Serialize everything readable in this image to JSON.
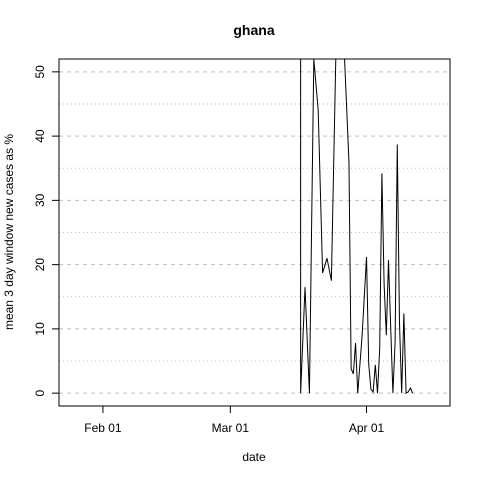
{
  "chart_data": {
    "type": "line",
    "title": "ghana",
    "xlabel": "date",
    "ylabel": "mean  3  day window new cases as %",
    "xlim": [
      "2020-01-22",
      "2020-04-20"
    ],
    "ylim": [
      -2,
      52
    ],
    "x_ticks": [
      {
        "date": "2020-02-01",
        "label": "Feb 01"
      },
      {
        "date": "2020-03-01",
        "label": "Mar 01"
      },
      {
        "date": "2020-04-01",
        "label": "Apr 01"
      }
    ],
    "y_ticks": [
      0,
      10,
      20,
      30,
      40,
      50
    ],
    "grid": {
      "horizontal_major": [
        0,
        10,
        20,
        30,
        40,
        50
      ],
      "horizontal_minor": [
        5,
        15,
        25,
        35,
        45
      ],
      "vertical": false
    },
    "line_color": "#000000",
    "grid_color": "#bebebe",
    "series": [
      {
        "name": "",
        "points": [
          {
            "x": "2020-03-17",
            "y": 52
          },
          {
            "x": "2020-03-17",
            "y": 0
          },
          {
            "x": "2020-03-18",
            "y": 16.5
          },
          {
            "x": "2020-03-19",
            "y": 0
          },
          {
            "x": "2020-03-20",
            "y": 52
          },
          {
            "x": "2020-03-21",
            "y": 44
          },
          {
            "x": "2020-03-22",
            "y": 18.7
          },
          {
            "x": "2020-03-23",
            "y": 21
          },
          {
            "x": "2020-03-24",
            "y": 17.5
          },
          {
            "x": "2020-03-25",
            "y": 52
          },
          {
            "x": "2020-03-27",
            "y": 52
          },
          {
            "x": "2020-03-28",
            "y": 36
          },
          {
            "x": "2020-03-28.5",
            "y": 3.8
          },
          {
            "x": "2020-03-29",
            "y": 3.0
          },
          {
            "x": "2020-03-29.5",
            "y": 7.8
          },
          {
            "x": "2020-03-30",
            "y": 0
          },
          {
            "x": "2020-03-31",
            "y": 9
          },
          {
            "x": "2020-04-01",
            "y": 21.2
          },
          {
            "x": "2020-04-01.5",
            "y": 4.5
          },
          {
            "x": "2020-04-02",
            "y": 0.6
          },
          {
            "x": "2020-04-02.5",
            "y": 0.2
          },
          {
            "x": "2020-04-03",
            "y": 4.4
          },
          {
            "x": "2020-04-03.5",
            "y": 0
          },
          {
            "x": "2020-04-04",
            "y": 7
          },
          {
            "x": "2020-04-04.5",
            "y": 34.2
          },
          {
            "x": "2020-04-05",
            "y": 17
          },
          {
            "x": "2020-04-05.5",
            "y": 9
          },
          {
            "x": "2020-04-06",
            "y": 20.7
          },
          {
            "x": "2020-04-07",
            "y": 0
          },
          {
            "x": "2020-04-07.5",
            "y": 7.8
          },
          {
            "x": "2020-04-08",
            "y": 38.7
          },
          {
            "x": "2020-04-08.5",
            "y": 11
          },
          {
            "x": "2020-04-09",
            "y": 0
          },
          {
            "x": "2020-04-09.5",
            "y": 12.4
          },
          {
            "x": "2020-04-10",
            "y": 0
          },
          {
            "x": "2020-04-10.5",
            "y": 0.2
          },
          {
            "x": "2020-04-11",
            "y": 0.8
          },
          {
            "x": "2020-04-11.5",
            "y": 0
          }
        ]
      }
    ]
  }
}
